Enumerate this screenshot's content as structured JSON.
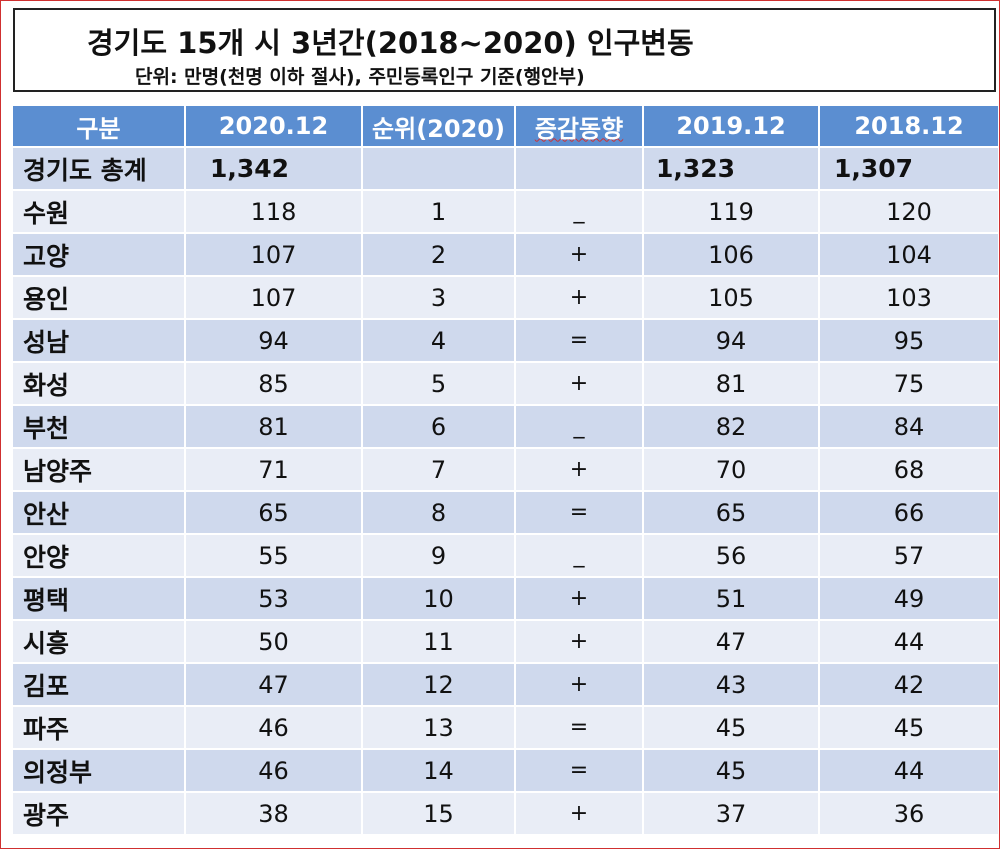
{
  "title": "경기도 15개 시 3년간(2018~2020) 인구변동",
  "subtitle": "단위: 만명(천명 이하 절사), 주민등록인구 기준(행안부)",
  "headers": [
    "구분",
    "2020.12",
    "순위(2020)",
    "증감동향",
    "2019.12",
    "2018.12"
  ],
  "total": {
    "name": "경기도 총계",
    "v2020": "1,342",
    "rank": "",
    "trend": "",
    "v2019": "1,323",
    "v2018": "1,307"
  },
  "rows": [
    {
      "name": "수원",
      "v2020": "118",
      "rank": "1",
      "trend": "_",
      "v2019": "119",
      "v2018": "120"
    },
    {
      "name": "고양",
      "v2020": "107",
      "rank": "2",
      "trend": "+",
      "v2019": "106",
      "v2018": "104"
    },
    {
      "name": "용인",
      "v2020": "107",
      "rank": "3",
      "trend": "+",
      "v2019": "105",
      "v2018": "103"
    },
    {
      "name": "성남",
      "v2020": "94",
      "rank": "4",
      "trend": "=",
      "v2019": "94",
      "v2018": "95"
    },
    {
      "name": "화성",
      "v2020": "85",
      "rank": "5",
      "trend": "+",
      "v2019": "81",
      "v2018": "75"
    },
    {
      "name": "부천",
      "v2020": "81",
      "rank": "6",
      "trend": "_",
      "v2019": "82",
      "v2018": "84"
    },
    {
      "name": "남양주",
      "v2020": "71",
      "rank": "7",
      "trend": "+",
      "v2019": "70",
      "v2018": "68"
    },
    {
      "name": "안산",
      "v2020": "65",
      "rank": "8",
      "trend": "=",
      "v2019": "65",
      "v2018": "66"
    },
    {
      "name": "안양",
      "v2020": "55",
      "rank": "9",
      "trend": "_",
      "v2019": "56",
      "v2018": "57"
    },
    {
      "name": "평택",
      "v2020": "53",
      "rank": "10",
      "trend": "+",
      "v2019": "51",
      "v2018": "49"
    },
    {
      "name": "시흥",
      "v2020": "50",
      "rank": "11",
      "trend": "+",
      "v2019": "47",
      "v2018": "44"
    },
    {
      "name": "김포",
      "v2020": "47",
      "rank": "12",
      "trend": "+",
      "v2019": "43",
      "v2018": "42"
    },
    {
      "name": "파주",
      "v2020": "46",
      "rank": "13",
      "trend": "=",
      "v2019": "45",
      "v2018": "45"
    },
    {
      "name": "의정부",
      "v2020": "46",
      "rank": "14",
      "trend": "=",
      "v2019": "45",
      "v2018": "44"
    },
    {
      "name": "광주",
      "v2020": "38",
      "rank": "15",
      "trend": "+",
      "v2019": "37",
      "v2018": "36"
    }
  ]
}
